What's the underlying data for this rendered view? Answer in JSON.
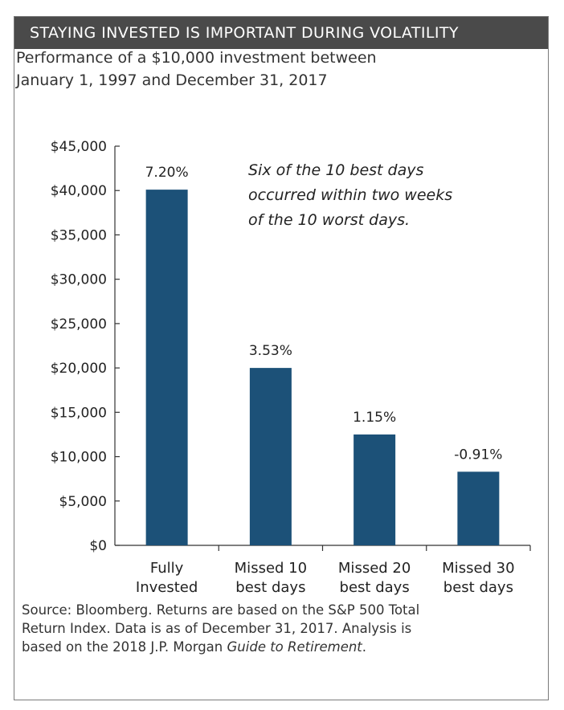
{
  "header": {
    "title": "STAYING INVESTED IS IMPORTANT DURING VOLATILITY"
  },
  "subtitle": {
    "line1": "Performance of a $10,000 investment between",
    "line2": "January 1, 1997 and December 31, 2017"
  },
  "chart_data": {
    "type": "bar",
    "title": "Performance of a $10,000 investment between January 1, 1997 and December 31, 2017",
    "categories": [
      "Fully Invested",
      "Missed 10 best days",
      "Missed 20 best days",
      "Missed 30 best days"
    ],
    "category_lines": [
      [
        "Fully",
        "Invested"
      ],
      [
        "Missed 10",
        "best days"
      ],
      [
        "Missed 20",
        "best days"
      ],
      [
        "Missed 30",
        "best days"
      ]
    ],
    "values": [
      40100,
      20000,
      12500,
      8300
    ],
    "data_labels": [
      "7.20%",
      "3.53%",
      "1.15%",
      "-0.91%"
    ],
    "ylim": [
      0,
      45000
    ],
    "yticks": [
      0,
      5000,
      10000,
      15000,
      20000,
      25000,
      30000,
      35000,
      40000,
      45000
    ],
    "ytick_labels": [
      "$0",
      "$5,000",
      "$10,000",
      "$15,000",
      "$20,000",
      "$25,000",
      "$30,000",
      "$35,000",
      "$40,000",
      "$45,000"
    ],
    "annotation": [
      "Six of the 10 best days",
      "occurred within two weeks",
      "of the 10 worst days."
    ],
    "grid": false,
    "bar_color": "#1c5178"
  },
  "source": {
    "line1": "Source: Bloomberg. Returns are based on the S&P 500 Total",
    "line2": "Return Index. Data is as of December 31, 2017. Analysis is",
    "line3_prefix": "based on the 2018 J.P. Morgan ",
    "line3_italic": "Guide to Retirement",
    "line3_suffix": "."
  }
}
